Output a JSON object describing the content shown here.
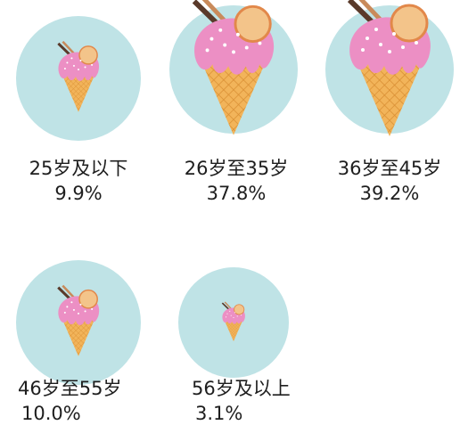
{
  "chart_data": {
    "type": "pictogram",
    "categories": [
      "25岁及以下",
      "26岁至35岁",
      "36岁至45岁",
      "46岁至55岁",
      "56岁及以上"
    ],
    "values": [
      9.9,
      37.8,
      39.2,
      10.0,
      3.1
    ],
    "value_labels": [
      "9.9%",
      "37.8%",
      "39.2%",
      "10.0%",
      "3.1%"
    ],
    "color": "#bfe3e6"
  }
}
